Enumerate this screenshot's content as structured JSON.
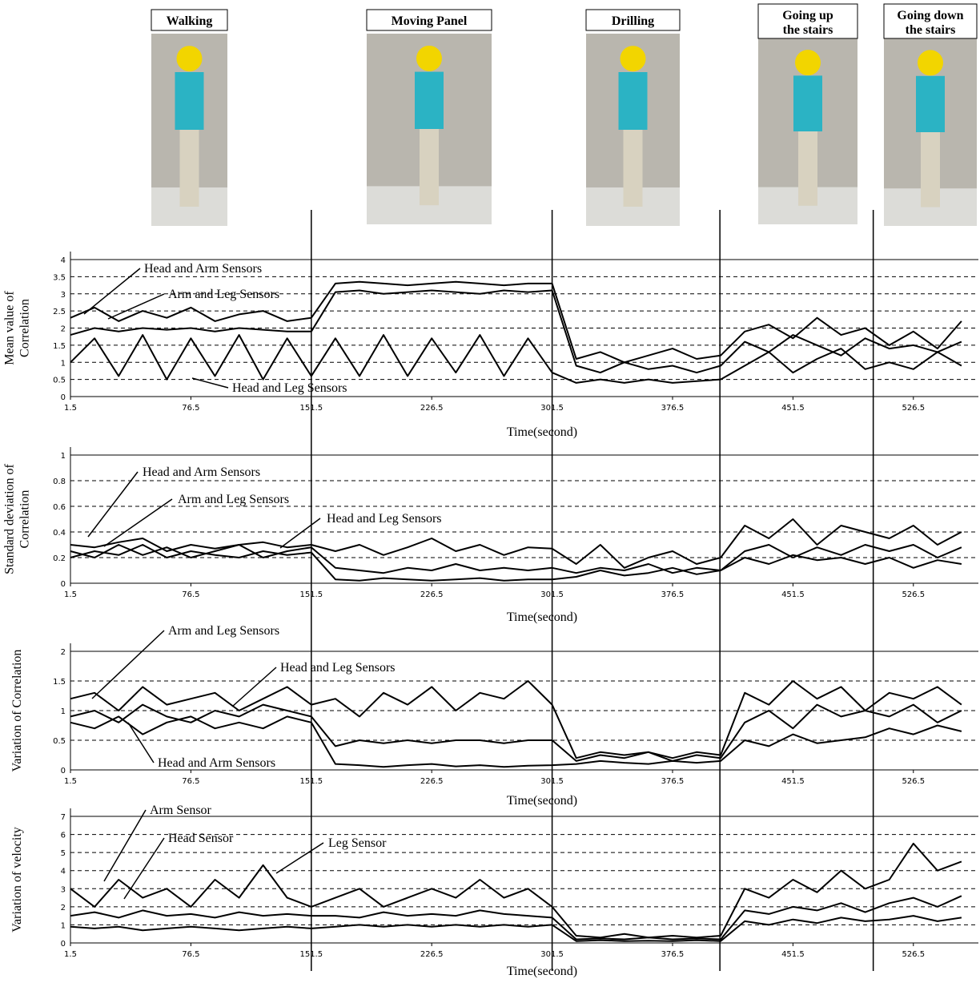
{
  "activities": [
    [
      "Walking"
    ],
    [
      "Moving Panel"
    ],
    [
      "Drilling"
    ],
    [
      "Going up",
      "the stairs"
    ],
    [
      "Going down",
      "the stairs"
    ]
  ],
  "phase_boundaries": [
    151.5,
    301.5,
    406,
    501.5
  ],
  "chart_data": [
    {
      "type": "line",
      "ylabel": [
        "Mean value of",
        "Correlation"
      ],
      "xlabel": "Time(second)",
      "xlim": [
        1.5,
        567
      ],
      "xticks": [
        1.5,
        76.5,
        151.5,
        226.5,
        301.5,
        376.5,
        451.5,
        526.5
      ],
      "ylim": [
        0,
        4
      ],
      "yticks": [
        0,
        0.5,
        1,
        1.5,
        2,
        2.5,
        3,
        3.5,
        4
      ],
      "grid": true,
      "x": [
        1.5,
        16.5,
        31.5,
        46.5,
        61.5,
        76.5,
        91.5,
        106.5,
        121.5,
        136.5,
        151.5,
        166.5,
        181.5,
        196.5,
        211.5,
        226.5,
        241.5,
        256.5,
        271.5,
        286.5,
        301.5,
        316.5,
        331.5,
        346.5,
        361.5,
        376.5,
        391.5,
        406.5,
        421.5,
        436.5,
        451.5,
        466.5,
        481.5,
        496.5,
        511.5,
        526.5,
        541.5,
        556.5
      ],
      "series": [
        {
          "name": "Head and Arm Sensors",
          "color": "#000000",
          "values": [
            2.3,
            2.6,
            2.2,
            2.5,
            2.3,
            2.6,
            2.2,
            2.4,
            2.5,
            2.2,
            2.3,
            3.3,
            3.35,
            3.3,
            3.25,
            3.3,
            3.35,
            3.3,
            3.25,
            3.3,
            3.3,
            1.1,
            1.3,
            1.0,
            1.2,
            1.4,
            1.1,
            1.2,
            1.9,
            2.1,
            1.7,
            2.3,
            1.8,
            2.0,
            1.5,
            1.9,
            1.4,
            2.2
          ]
        },
        {
          "name": "Arm and Leg Sensors",
          "color": "#000000",
          "values": [
            1.8,
            2.0,
            1.9,
            2.0,
            1.95,
            2.0,
            1.9,
            2.0,
            1.95,
            1.9,
            1.9,
            3.05,
            3.1,
            3.0,
            3.05,
            3.1,
            3.05,
            3.0,
            3.1,
            3.05,
            3.1,
            0.9,
            0.7,
            1.0,
            0.8,
            0.9,
            0.7,
            0.9,
            1.6,
            1.3,
            1.8,
            1.5,
            1.2,
            1.7,
            1.4,
            1.5,
            1.3,
            1.6
          ]
        },
        {
          "name": "Head and Leg Sensors",
          "color": "#000000",
          "values": [
            1.0,
            1.7,
            0.6,
            1.8,
            0.5,
            1.7,
            0.6,
            1.8,
            0.5,
            1.7,
            0.6,
            1.7,
            0.6,
            1.8,
            0.6,
            1.7,
            0.7,
            1.8,
            0.6,
            1.7,
            0.7,
            0.4,
            0.5,
            0.4,
            0.5,
            0.4,
            0.45,
            0.5,
            0.9,
            1.3,
            0.7,
            1.1,
            1.4,
            0.8,
            1.0,
            0.8,
            1.3,
            0.9
          ]
        }
      ]
    },
    {
      "type": "line",
      "ylabel": [
        "Standard deviation of",
        "Correlation"
      ],
      "xlabel": "Time(second)",
      "xlim": [
        1.5,
        567
      ],
      "xticks": [
        1.5,
        76.5,
        151.5,
        226.5,
        301.5,
        376.5,
        451.5,
        526.5
      ],
      "ylim": [
        0,
        1
      ],
      "yticks": [
        0,
        0.2,
        0.4,
        0.6,
        0.8,
        1
      ],
      "grid": true,
      "x": [
        1.5,
        16.5,
        31.5,
        46.5,
        61.5,
        76.5,
        91.5,
        106.5,
        121.5,
        136.5,
        151.5,
        166.5,
        181.5,
        196.5,
        211.5,
        226.5,
        241.5,
        256.5,
        271.5,
        286.5,
        301.5,
        316.5,
        331.5,
        346.5,
        361.5,
        376.5,
        391.5,
        406.5,
        421.5,
        436.5,
        451.5,
        466.5,
        481.5,
        496.5,
        511.5,
        526.5,
        541.5,
        556.5
      ],
      "series": [
        {
          "name": "Head and Arm Sensors",
          "color": "#000000",
          "values": [
            0.3,
            0.28,
            0.32,
            0.35,
            0.25,
            0.3,
            0.27,
            0.3,
            0.32,
            0.28,
            0.3,
            0.25,
            0.3,
            0.22,
            0.28,
            0.35,
            0.25,
            0.3,
            0.22,
            0.28,
            0.27,
            0.15,
            0.3,
            0.12,
            0.2,
            0.25,
            0.15,
            0.2,
            0.45,
            0.35,
            0.5,
            0.3,
            0.45,
            0.4,
            0.35,
            0.45,
            0.3,
            0.4
          ]
        },
        {
          "name": "Arm and Leg Sensors",
          "color": "#000000",
          "values": [
            0.25,
            0.2,
            0.3,
            0.22,
            0.28,
            0.2,
            0.25,
            0.3,
            0.2,
            0.25,
            0.28,
            0.12,
            0.1,
            0.08,
            0.12,
            0.1,
            0.15,
            0.1,
            0.12,
            0.1,
            0.12,
            0.08,
            0.12,
            0.1,
            0.15,
            0.08,
            0.12,
            0.1,
            0.25,
            0.3,
            0.2,
            0.28,
            0.22,
            0.3,
            0.25,
            0.3,
            0.2,
            0.28
          ]
        },
        {
          "name": "Head and Leg Sensors",
          "color": "#000000",
          "values": [
            0.2,
            0.25,
            0.22,
            0.3,
            0.2,
            0.25,
            0.22,
            0.2,
            0.25,
            0.22,
            0.24,
            0.03,
            0.02,
            0.04,
            0.03,
            0.02,
            0.03,
            0.04,
            0.02,
            0.03,
            0.03,
            0.05,
            0.1,
            0.06,
            0.08,
            0.12,
            0.07,
            0.1,
            0.2,
            0.15,
            0.22,
            0.18,
            0.2,
            0.15,
            0.2,
            0.12,
            0.18,
            0.15
          ]
        }
      ]
    },
    {
      "type": "line",
      "ylabel": [
        "Variation of Correlation"
      ],
      "xlabel": "Time(second)",
      "xlim": [
        1.5,
        567
      ],
      "xticks": [
        1.5,
        76.5,
        151.5,
        226.5,
        301.5,
        376.5,
        451.5,
        526.5
      ],
      "ylim": [
        0,
        2
      ],
      "yticks": [
        0,
        0.5,
        1,
        1.5,
        2
      ],
      "grid": true,
      "x": [
        1.5,
        16.5,
        31.5,
        46.5,
        61.5,
        76.5,
        91.5,
        106.5,
        121.5,
        136.5,
        151.5,
        166.5,
        181.5,
        196.5,
        211.5,
        226.5,
        241.5,
        256.5,
        271.5,
        286.5,
        301.5,
        316.5,
        331.5,
        346.5,
        361.5,
        376.5,
        391.5,
        406.5,
        421.5,
        436.5,
        451.5,
        466.5,
        481.5,
        496.5,
        511.5,
        526.5,
        541.5,
        556.5
      ],
      "series": [
        {
          "name": "Arm and Leg Sensors",
          "color": "#000000",
          "values": [
            1.2,
            1.3,
            1.0,
            1.4,
            1.1,
            1.2,
            1.3,
            1.0,
            1.2,
            1.4,
            1.1,
            1.2,
            0.9,
            1.3,
            1.1,
            1.4,
            1.0,
            1.3,
            1.2,
            1.5,
            1.1,
            0.2,
            0.3,
            0.25,
            0.3,
            0.2,
            0.3,
            0.25,
            1.3,
            1.1,
            1.5,
            1.2,
            1.4,
            1.0,
            1.3,
            1.2,
            1.4,
            1.1
          ]
        },
        {
          "name": "Head and Leg Sensors",
          "color": "#000000",
          "values": [
            0.9,
            1.0,
            0.8,
            1.1,
            0.9,
            0.8,
            1.0,
            0.9,
            1.1,
            1.0,
            0.9,
            0.4,
            0.5,
            0.45,
            0.5,
            0.45,
            0.5,
            0.5,
            0.45,
            0.5,
            0.5,
            0.15,
            0.25,
            0.2,
            0.3,
            0.15,
            0.25,
            0.2,
            0.8,
            1.0,
            0.7,
            1.1,
            0.9,
            1.0,
            0.9,
            1.1,
            0.8,
            1.0
          ]
        },
        {
          "name": "Head and Arm Sensors",
          "color": "#000000",
          "values": [
            0.8,
            0.7,
            0.9,
            0.6,
            0.8,
            0.9,
            0.7,
            0.8,
            0.7,
            0.9,
            0.8,
            0.1,
            0.08,
            0.05,
            0.08,
            0.1,
            0.06,
            0.08,
            0.05,
            0.07,
            0.08,
            0.1,
            0.15,
            0.12,
            0.1,
            0.15,
            0.12,
            0.15,
            0.5,
            0.4,
            0.6,
            0.45,
            0.5,
            0.55,
            0.7,
            0.6,
            0.75,
            0.65
          ]
        }
      ]
    },
    {
      "type": "line",
      "ylabel": [
        "Variation of velocity"
      ],
      "xlabel": "Time(second)",
      "xlim": [
        1.5,
        567
      ],
      "xticks": [
        1.5,
        76.5,
        151.5,
        226.5,
        301.5,
        376.5,
        451.5,
        526.5
      ],
      "ylim": [
        0,
        7
      ],
      "yticks": [
        0,
        1,
        2,
        3,
        4,
        5,
        6,
        7
      ],
      "grid": true,
      "x": [
        1.5,
        16.5,
        31.5,
        46.5,
        61.5,
        76.5,
        91.5,
        106.5,
        121.5,
        136.5,
        151.5,
        166.5,
        181.5,
        196.5,
        211.5,
        226.5,
        241.5,
        256.5,
        271.5,
        286.5,
        301.5,
        316.5,
        331.5,
        346.5,
        361.5,
        376.5,
        391.5,
        406.5,
        421.5,
        436.5,
        451.5,
        466.5,
        481.5,
        496.5,
        511.5,
        526.5,
        541.5,
        556.5
      ],
      "series": [
        {
          "name": "Arm Sensor",
          "color": "#000000",
          "values": [
            3.0,
            2.0,
            3.5,
            2.5,
            3.0,
            2.0,
            3.5,
            2.5,
            4.3,
            2.5,
            2.0,
            2.5,
            3.0,
            2.0,
            2.5,
            3.0,
            2.5,
            3.5,
            2.5,
            3.0,
            2.0,
            0.4,
            0.3,
            0.5,
            0.3,
            0.4,
            0.3,
            0.4,
            3.0,
            2.5,
            3.5,
            2.8,
            4.0,
            3.0,
            3.5,
            5.5,
            4.0,
            4.5
          ]
        },
        {
          "name": "Head Sensor",
          "color": "#000000",
          "values": [
            1.5,
            1.7,
            1.4,
            1.8,
            1.5,
            1.6,
            1.4,
            1.7,
            1.5,
            1.6,
            1.5,
            1.5,
            1.4,
            1.7,
            1.5,
            1.6,
            1.5,
            1.8,
            1.6,
            1.5,
            1.4,
            0.2,
            0.25,
            0.2,
            0.3,
            0.2,
            0.25,
            0.2,
            1.8,
            1.6,
            2.0,
            1.8,
            2.2,
            1.7,
            2.2,
            2.5,
            2.0,
            2.6
          ]
        },
        {
          "name": "Leg Sensor",
          "color": "#000000",
          "values": [
            0.9,
            0.8,
            0.9,
            0.7,
            0.8,
            0.9,
            0.8,
            0.7,
            0.8,
            0.9,
            0.8,
            0.9,
            1.0,
            0.9,
            1.0,
            0.9,
            1.0,
            0.9,
            1.0,
            0.9,
            1.0,
            0.1,
            0.15,
            0.1,
            0.12,
            0.1,
            0.15,
            0.1,
            1.2,
            1.0,
            1.3,
            1.1,
            1.4,
            1.2,
            1.3,
            1.5,
            1.2,
            1.4
          ]
        }
      ]
    }
  ]
}
